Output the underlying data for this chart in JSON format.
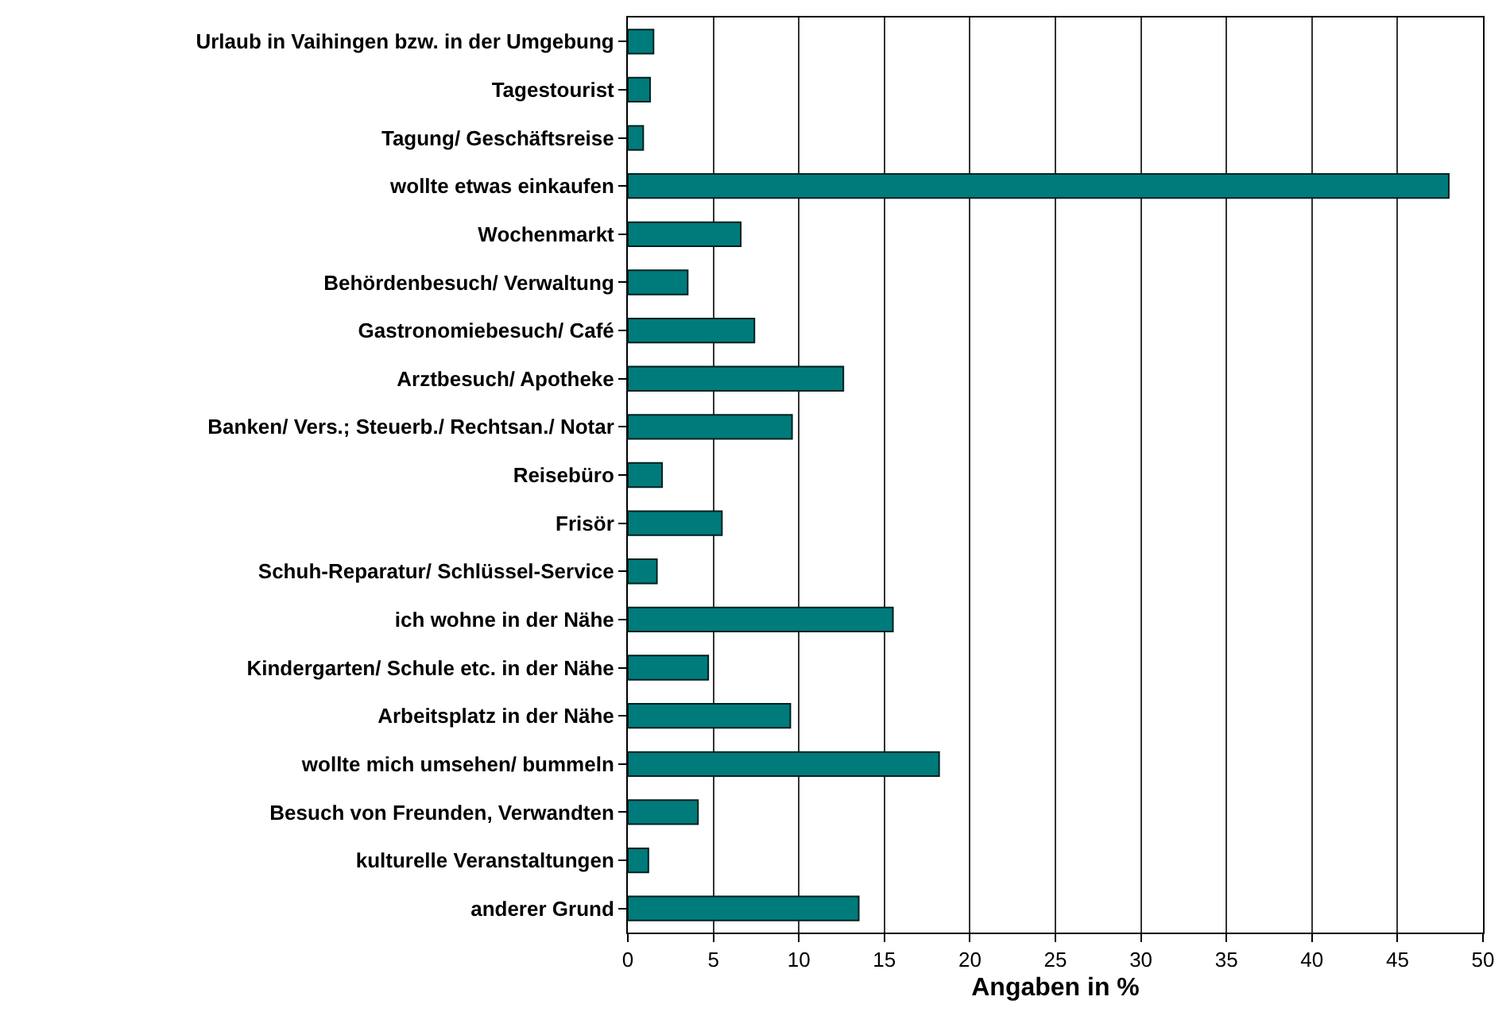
{
  "chart_data": {
    "type": "bar",
    "orientation": "horizontal",
    "xlabel": "Angaben in %",
    "categories": [
      "Urlaub in Vaihingen bzw. in der Umgebung",
      "Tagestourist",
      "Tagung/ Geschäftsreise",
      "wollte etwas einkaufen",
      "Wochenmarkt",
      "Behördenbesuch/ Verwaltung",
      "Gastronomiebesuch/ Café",
      "Arztbesuch/ Apotheke",
      "Banken/ Vers.; Steuerb./ Rechtsan./ Notar",
      "Reisebüro",
      "Frisör",
      "Schuh-Reparatur/ Schlüssel-Service",
      "ich wohne in der Nähe",
      "Kindergarten/ Schule etc. in der Nähe",
      "Arbeitsplatz in der Nähe",
      "wollte mich umsehen/ bummeln",
      "Besuch von Freunden, Verwandten",
      "kulturelle Veranstaltungen",
      "anderer Grund"
    ],
    "values": [
      1.5,
      1.3,
      0.9,
      48,
      6.6,
      3.5,
      7.4,
      12.6,
      9.6,
      2.0,
      5.5,
      1.7,
      15.5,
      4.7,
      9.5,
      18.2,
      4.1,
      1.2,
      13.5
    ],
    "color": "#007b7b",
    "xlim": [
      0,
      50
    ],
    "xticks": [
      0,
      5,
      10,
      15,
      20,
      25,
      30,
      35,
      40,
      45,
      50
    ],
    "grid": "x"
  }
}
